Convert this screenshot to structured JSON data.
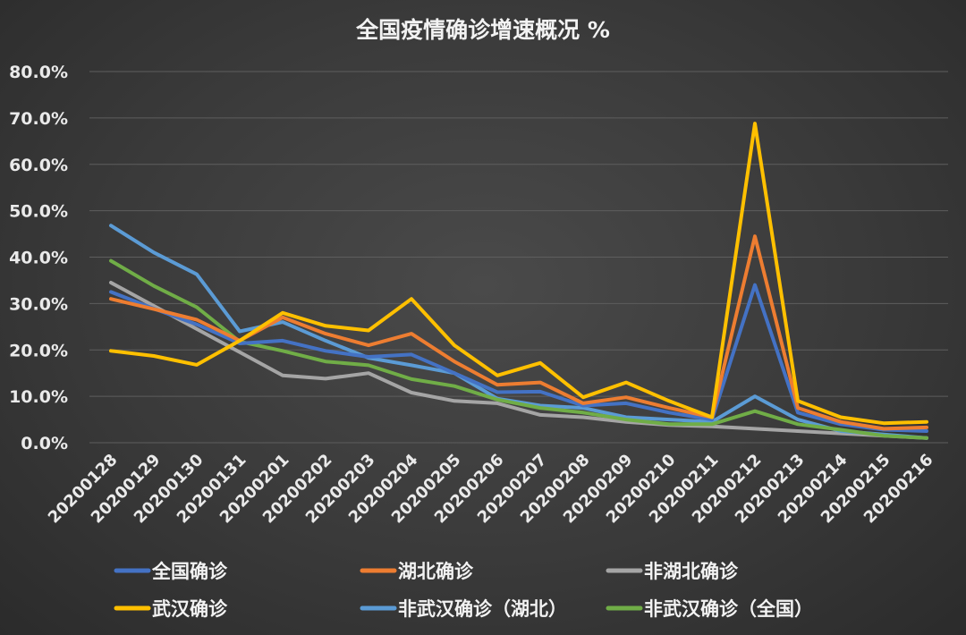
{
  "chart_data": {
    "type": "line",
    "title": "全国疫情确诊增速概况 %",
    "xlabel": "",
    "ylabel": "",
    "ylim": [
      0,
      80
    ],
    "y_ticks": [
      "0.0%",
      "10.0%",
      "20.0%",
      "30.0%",
      "40.0%",
      "50.0%",
      "60.0%",
      "70.0%",
      "80.0%"
    ],
    "grid": true,
    "legend_position": "bottom",
    "categories": [
      "20200128",
      "20200129",
      "20200130",
      "20200131",
      "20200201",
      "20200202",
      "20200203",
      "20200204",
      "20200205",
      "20200206",
      "20200207",
      "20200208",
      "20200209",
      "20200210",
      "20200211",
      "20200212",
      "20200213",
      "20200214",
      "20200215",
      "20200216"
    ],
    "series": [
      {
        "name": "全国确诊",
        "color": "#4472c4",
        "values": [
          32.5,
          28.9,
          25.5,
          21.4,
          22.0,
          19.8,
          18.5,
          19.0,
          15.0,
          10.9,
          11.0,
          8.0,
          8.5,
          6.5,
          5.0,
          34.0,
          6.5,
          4.0,
          2.8,
          2.5
        ]
      },
      {
        "name": "湖北确诊",
        "color": "#ed7d31",
        "values": [
          31.0,
          28.8,
          26.5,
          22.0,
          27.0,
          23.5,
          21.0,
          23.5,
          17.5,
          12.5,
          13.0,
          8.5,
          9.8,
          7.5,
          5.5,
          44.5,
          7.5,
          4.5,
          3.0,
          3.3
        ]
      },
      {
        "name": "非湖北确诊",
        "color": "#a5a5a5",
        "values": [
          34.5,
          29.5,
          24.5,
          19.5,
          14.5,
          13.8,
          15.0,
          10.8,
          9.0,
          8.5,
          6.0,
          5.5,
          4.5,
          3.8,
          3.5,
          3.0,
          2.5,
          2.0,
          1.5,
          1.0
        ]
      },
      {
        "name": "武汉确诊",
        "color": "#ffc000",
        "values": [
          19.8,
          18.7,
          16.8,
          22.0,
          28.0,
          25.2,
          24.2,
          31.0,
          21.0,
          14.5,
          17.2,
          9.8,
          13.0,
          9.0,
          5.5,
          68.8,
          9.0,
          5.5,
          4.2,
          4.5
        ]
      },
      {
        "name": "非武汉确诊（湖北）",
        "color": "#5b9bd5",
        "values": [
          46.8,
          41.0,
          36.3,
          24.0,
          26.0,
          22.0,
          18.3,
          16.7,
          15.0,
          9.5,
          8.0,
          7.5,
          5.5,
          5.0,
          4.5,
          10.0,
          5.0,
          2.5,
          1.8,
          1.0
        ]
      },
      {
        "name": "非武汉确诊（全国）",
        "color": "#70ad47",
        "values": [
          39.2,
          33.8,
          29.2,
          21.8,
          19.8,
          17.5,
          16.7,
          13.7,
          12.2,
          9.3,
          7.5,
          6.5,
          5.0,
          4.0,
          4.0,
          6.8,
          4.0,
          2.8,
          1.5,
          1.0
        ]
      }
    ]
  }
}
